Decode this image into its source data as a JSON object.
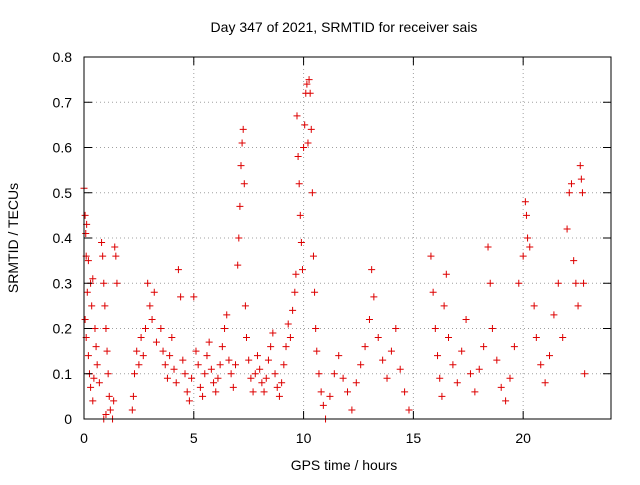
{
  "chart_data": {
    "type": "scatter",
    "title": "Day 347 of 2021, SRMTID for receiver sais",
    "xlabel": "GPS time / hours",
    "ylabel": "SRMTID / TECUs",
    "xlim": [
      0,
      24
    ],
    "ylim": [
      0,
      0.8
    ],
    "xticks": [
      0,
      5,
      10,
      15,
      20
    ],
    "xtick_labels": [
      "0",
      "5",
      "10",
      "15",
      "20"
    ],
    "yticks": [
      0,
      0.1,
      0.2,
      0.3,
      0.4,
      0.5,
      0.6,
      0.7,
      0.8
    ],
    "ytick_labels": [
      "0",
      "0.1",
      "0.2",
      "0.3",
      "0.4",
      "0.5",
      "0.6",
      "0.7",
      "0.8"
    ],
    "grid": true,
    "marker": "+",
    "color": "#dd0000",
    "series": [
      {
        "name": "SRMTID",
        "points": [
          [
            0.0,
            0.51
          ],
          [
            0.05,
            0.45
          ],
          [
            0.08,
            0.41
          ],
          [
            0.12,
            0.43
          ],
          [
            0.1,
            0.36
          ],
          [
            0.2,
            0.35
          ],
          [
            0.3,
            0.3
          ],
          [
            0.35,
            0.25
          ],
          [
            0.4,
            0.31
          ],
          [
            0.15,
            0.28
          ],
          [
            0.05,
            0.22
          ],
          [
            0.1,
            0.18
          ],
          [
            0.2,
            0.14
          ],
          [
            0.25,
            0.1
          ],
          [
            0.3,
            0.07
          ],
          [
            0.4,
            0.04
          ],
          [
            0.45,
            0.09
          ],
          [
            0.5,
            0.2
          ],
          [
            0.55,
            0.16
          ],
          [
            0.6,
            0.12
          ],
          [
            0.7,
            0.08
          ],
          [
            0.8,
            0.39
          ],
          [
            0.85,
            0.36
          ],
          [
            0.9,
            0.3
          ],
          [
            0.95,
            0.25
          ],
          [
            1.0,
            0.2
          ],
          [
            1.05,
            0.15
          ],
          [
            1.1,
            0.1
          ],
          [
            1.15,
            0.05
          ],
          [
            1.2,
            0.02
          ],
          [
            1.3,
            0.0
          ],
          [
            1.35,
            0.04
          ],
          [
            1.4,
            0.38
          ],
          [
            1.45,
            0.36
          ],
          [
            1.5,
            0.3
          ],
          [
            1.0,
            0.01
          ],
          [
            0.9,
            0.0
          ],
          [
            2.2,
            0.02
          ],
          [
            2.25,
            0.05
          ],
          [
            2.3,
            0.1
          ],
          [
            2.4,
            0.15
          ],
          [
            2.5,
            0.12
          ],
          [
            2.6,
            0.18
          ],
          [
            2.7,
            0.14
          ],
          [
            2.8,
            0.2
          ],
          [
            2.9,
            0.3
          ],
          [
            3.0,
            0.25
          ],
          [
            3.1,
            0.22
          ],
          [
            3.2,
            0.28
          ],
          [
            3.3,
            0.17
          ],
          [
            3.5,
            0.2
          ],
          [
            3.6,
            0.15
          ],
          [
            3.7,
            0.12
          ],
          [
            3.8,
            0.09
          ],
          [
            3.9,
            0.14
          ],
          [
            4.0,
            0.18
          ],
          [
            4.1,
            0.11
          ],
          [
            4.2,
            0.08
          ],
          [
            4.3,
            0.33
          ],
          [
            4.4,
            0.27
          ],
          [
            4.5,
            0.13
          ],
          [
            4.6,
            0.1
          ],
          [
            4.7,
            0.06
          ],
          [
            4.8,
            0.04
          ],
          [
            4.9,
            0.09
          ],
          [
            5.0,
            0.27
          ],
          [
            5.1,
            0.15
          ],
          [
            5.2,
            0.12
          ],
          [
            5.3,
            0.07
          ],
          [
            5.4,
            0.05
          ],
          [
            5.5,
            0.1
          ],
          [
            5.6,
            0.14
          ],
          [
            5.7,
            0.17
          ],
          [
            5.8,
            0.11
          ],
          [
            5.9,
            0.08
          ],
          [
            6.0,
            0.06
          ],
          [
            6.1,
            0.09
          ],
          [
            6.2,
            0.12
          ],
          [
            6.3,
            0.16
          ],
          [
            6.4,
            0.2
          ],
          [
            6.5,
            0.23
          ],
          [
            6.6,
            0.13
          ],
          [
            6.7,
            0.1
          ],
          [
            6.8,
            0.07
          ],
          [
            6.9,
            0.12
          ],
          [
            7.0,
            0.34
          ],
          [
            7.05,
            0.4
          ],
          [
            7.1,
            0.47
          ],
          [
            7.15,
            0.56
          ],
          [
            7.2,
            0.61
          ],
          [
            7.25,
            0.64
          ],
          [
            7.3,
            0.52
          ],
          [
            7.35,
            0.25
          ],
          [
            7.4,
            0.18
          ],
          [
            7.5,
            0.13
          ],
          [
            7.6,
            0.09
          ],
          [
            7.7,
            0.06
          ],
          [
            7.8,
            0.1
          ],
          [
            7.9,
            0.14
          ],
          [
            8.0,
            0.11
          ],
          [
            8.1,
            0.08
          ],
          [
            8.2,
            0.06
          ],
          [
            8.3,
            0.09
          ],
          [
            8.4,
            0.13
          ],
          [
            8.5,
            0.16
          ],
          [
            8.6,
            0.19
          ],
          [
            8.7,
            0.1
          ],
          [
            8.8,
            0.07
          ],
          [
            8.9,
            0.05
          ],
          [
            9.0,
            0.08
          ],
          [
            9.1,
            0.12
          ],
          [
            9.2,
            0.16
          ],
          [
            9.3,
            0.21
          ],
          [
            9.4,
            0.18
          ],
          [
            9.5,
            0.24
          ],
          [
            9.6,
            0.28
          ],
          [
            9.65,
            0.32
          ],
          [
            9.7,
            0.67
          ],
          [
            9.75,
            0.58
          ],
          [
            9.8,
            0.52
          ],
          [
            9.85,
            0.45
          ],
          [
            9.9,
            0.39
          ],
          [
            9.95,
            0.33
          ],
          [
            10.0,
            0.6
          ],
          [
            10.05,
            0.65
          ],
          [
            10.1,
            0.72
          ],
          [
            10.15,
            0.74
          ],
          [
            10.2,
            0.61
          ],
          [
            10.25,
            0.75
          ],
          [
            10.3,
            0.72
          ],
          [
            10.35,
            0.64
          ],
          [
            10.4,
            0.5
          ],
          [
            10.45,
            0.36
          ],
          [
            10.5,
            0.28
          ],
          [
            10.55,
            0.2
          ],
          [
            10.6,
            0.15
          ],
          [
            10.7,
            0.1
          ],
          [
            10.8,
            0.06
          ],
          [
            10.9,
            0.03
          ],
          [
            11.0,
            0.0
          ],
          [
            11.2,
            0.05
          ],
          [
            11.4,
            0.1
          ],
          [
            11.6,
            0.14
          ],
          [
            11.8,
            0.09
          ],
          [
            12.0,
            0.06
          ],
          [
            12.2,
            0.02
          ],
          [
            12.4,
            0.08
          ],
          [
            12.6,
            0.12
          ],
          [
            12.8,
            0.16
          ],
          [
            13.0,
            0.22
          ],
          [
            13.1,
            0.33
          ],
          [
            13.2,
            0.27
          ],
          [
            13.4,
            0.18
          ],
          [
            13.6,
            0.13
          ],
          [
            13.8,
            0.09
          ],
          [
            14.0,
            0.15
          ],
          [
            14.2,
            0.2
          ],
          [
            14.4,
            0.11
          ],
          [
            14.6,
            0.06
          ],
          [
            14.8,
            0.02
          ],
          [
            15.8,
            0.36
          ],
          [
            15.9,
            0.28
          ],
          [
            16.0,
            0.2
          ],
          [
            16.1,
            0.14
          ],
          [
            16.2,
            0.09
          ],
          [
            16.3,
            0.05
          ],
          [
            16.4,
            0.25
          ],
          [
            16.5,
            0.32
          ],
          [
            16.6,
            0.18
          ],
          [
            16.8,
            0.12
          ],
          [
            17.0,
            0.08
          ],
          [
            17.2,
            0.15
          ],
          [
            17.4,
            0.22
          ],
          [
            17.6,
            0.1
          ],
          [
            17.8,
            0.06
          ],
          [
            18.0,
            0.11
          ],
          [
            18.2,
            0.16
          ],
          [
            18.4,
            0.38
          ],
          [
            18.5,
            0.3
          ],
          [
            18.6,
            0.2
          ],
          [
            18.8,
            0.13
          ],
          [
            19.0,
            0.07
          ],
          [
            19.2,
            0.04
          ],
          [
            19.4,
            0.09
          ],
          [
            19.6,
            0.16
          ],
          [
            19.8,
            0.3
          ],
          [
            20.0,
            0.36
          ],
          [
            20.1,
            0.48
          ],
          [
            20.15,
            0.45
          ],
          [
            20.2,
            0.4
          ],
          [
            20.3,
            0.38
          ],
          [
            20.5,
            0.25
          ],
          [
            20.6,
            0.18
          ],
          [
            20.8,
            0.12
          ],
          [
            21.0,
            0.08
          ],
          [
            21.2,
            0.14
          ],
          [
            21.4,
            0.23
          ],
          [
            21.6,
            0.3
          ],
          [
            21.8,
            0.18
          ],
          [
            22.0,
            0.42
          ],
          [
            22.1,
            0.5
          ],
          [
            22.2,
            0.52
          ],
          [
            22.3,
            0.35
          ],
          [
            22.4,
            0.3
          ],
          [
            22.5,
            0.25
          ],
          [
            22.6,
            0.56
          ],
          [
            22.65,
            0.53
          ],
          [
            22.7,
            0.5
          ],
          [
            22.75,
            0.3
          ],
          [
            22.8,
            0.1
          ]
        ]
      }
    ]
  }
}
